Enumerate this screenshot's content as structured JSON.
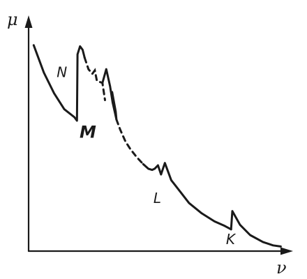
{
  "chart_data": {
    "type": "line",
    "title": "",
    "xlabel": "ν",
    "ylabel": "μ",
    "xlim": [
      0,
      10
    ],
    "ylim": [
      0,
      10
    ],
    "grid": false,
    "legend": "none",
    "series": [
      {
        "name": "",
        "style": "solid",
        "x": [
          0.2,
          0.6,
          1.0,
          1.4,
          1.8,
          1.9,
          1.92,
          2.02,
          2.12,
          2.2
        ],
        "y": [
          9.0,
          7.8,
          6.9,
          6.2,
          5.85,
          5.7,
          8.6,
          8.95,
          8.8,
          8.45
        ]
      },
      {
        "name": "",
        "style": "dashed",
        "x": [
          2.2,
          2.35,
          2.5,
          2.6,
          2.68,
          2.78,
          2.9,
          3.0
        ],
        "y": [
          8.45,
          7.95,
          7.75,
          7.9,
          7.45,
          7.4,
          7.35,
          6.6
        ]
      },
      {
        "name": "",
        "style": "solid",
        "x": [
          2.9,
          3.05,
          3.2,
          3.3,
          3.4,
          3.45,
          3.42,
          3.28
        ],
        "y": [
          7.35,
          7.95,
          7.2,
          6.5,
          6.0,
          5.75,
          6.1,
          6.95
        ]
      },
      {
        "name": "",
        "style": "dashed",
        "x": [
          3.45,
          3.6,
          3.8,
          4.0,
          4.25,
          4.5
        ],
        "y": [
          5.75,
          5.3,
          4.8,
          4.45,
          4.1,
          3.8
        ]
      },
      {
        "name": "",
        "style": "solid",
        "x": [
          4.5,
          4.7,
          4.85,
          4.95,
          5.08,
          5.2,
          5.35,
          5.6,
          5.95,
          6.3,
          6.8,
          7.3,
          7.7,
          7.95
        ],
        "y": [
          3.8,
          3.6,
          3.55,
          3.6,
          3.75,
          3.35,
          3.85,
          3.1,
          2.6,
          2.1,
          1.65,
          1.3,
          1.1,
          0.95
        ]
      },
      {
        "name": "",
        "style": "solid",
        "x": [
          7.95,
          8.0,
          8.3,
          8.7,
          9.2,
          9.6,
          9.9
        ],
        "y": [
          0.95,
          1.75,
          1.15,
          0.7,
          0.4,
          0.25,
          0.2
        ]
      }
    ],
    "annotations": [
      {
        "text": "N",
        "x": 1.1,
        "y": 7.6
      },
      {
        "text": "M",
        "x": 2.0,
        "y": 4.95
      },
      {
        "text": "L",
        "x": 4.9,
        "y": 2.1
      },
      {
        "text": "K",
        "x": 7.75,
        "y": 0.3
      }
    ]
  }
}
